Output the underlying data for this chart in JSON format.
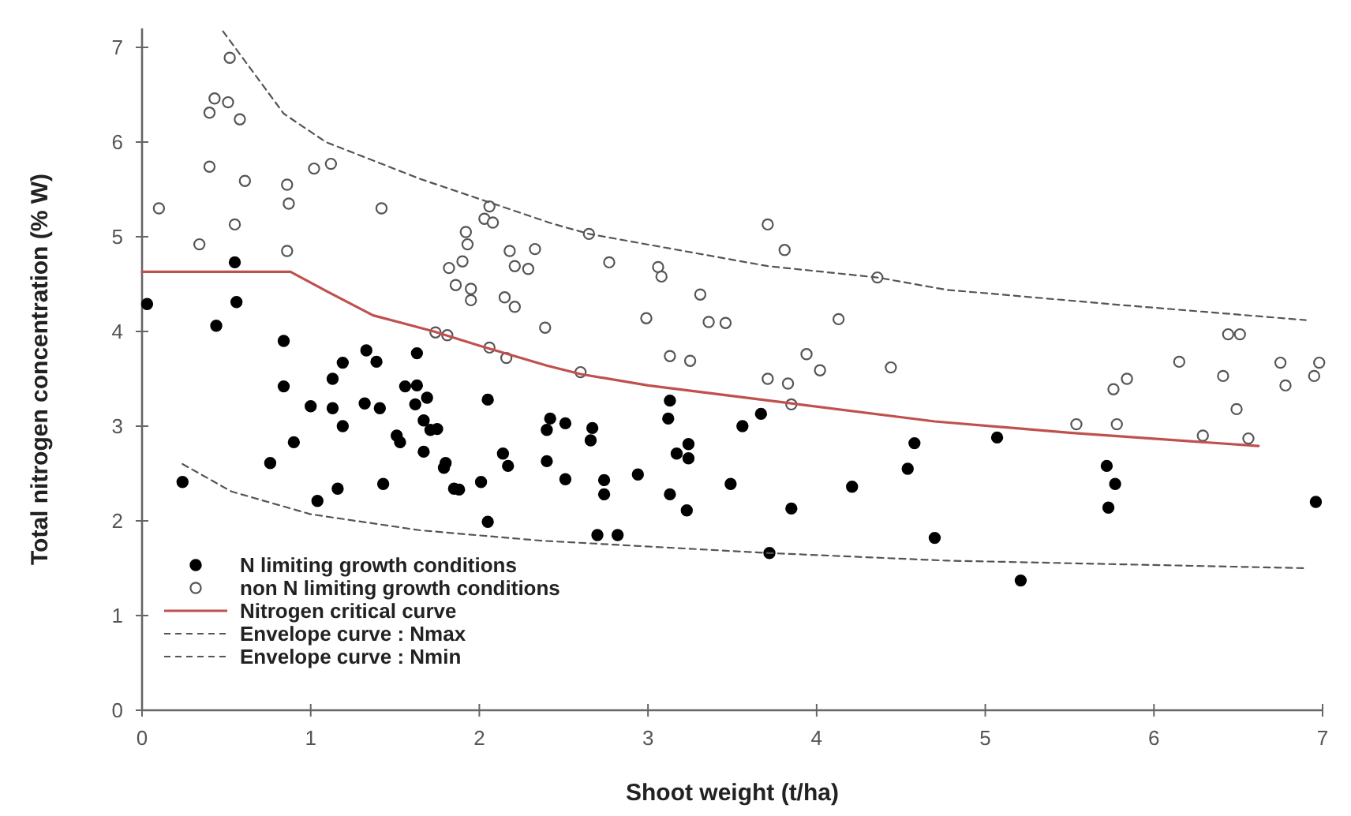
{
  "chart_data": {
    "type": "scatter",
    "xlabel": "Shoot weight (t/ha)",
    "ylabel": "Total nitrogen concentration (% W)",
    "xlim": [
      0,
      7
    ],
    "ylim": [
      0,
      7.2
    ],
    "xticks": [
      0,
      1,
      2,
      3,
      4,
      5,
      6,
      7
    ],
    "yticks": [
      0,
      1,
      2,
      3,
      4,
      5,
      6,
      7
    ],
    "grid": false,
    "legend": "bottom left",
    "series": [
      {
        "name": "N limiting growth conditions",
        "marker": "circle",
        "color": "#000000",
        "x": [
          0.03,
          0.24,
          0.44,
          0.55,
          0.56,
          0.76,
          0.84,
          0.84,
          0.9,
          1.0,
          1.04,
          1.13,
          1.13,
          1.16,
          1.19,
          1.19,
          1.32,
          1.33,
          1.39,
          1.41,
          1.43,
          1.51,
          1.53,
          1.56,
          1.62,
          1.63,
          1.63,
          1.67,
          1.67,
          1.69,
          1.71,
          1.75,
          1.79,
          1.8,
          1.85,
          1.88,
          2.01,
          2.05,
          2.05,
          2.14,
          2.17,
          2.4,
          2.4,
          2.42,
          2.51,
          2.51,
          2.66,
          2.67,
          2.7,
          2.74,
          2.74,
          2.82,
          2.94,
          3.12,
          3.13,
          3.13,
          3.17,
          3.23,
          3.24,
          3.24,
          3.49,
          3.56,
          3.67,
          3.72,
          3.85,
          4.21,
          4.54,
          4.58,
          4.7,
          5.07,
          5.21,
          5.72,
          5.73,
          5.77,
          6.96
        ],
        "values": [
          4.29,
          2.41,
          4.06,
          4.73,
          4.31,
          2.61,
          3.9,
          3.42,
          2.83,
          3.21,
          2.21,
          3.19,
          3.5,
          2.34,
          3.67,
          3.0,
          3.24,
          3.8,
          3.68,
          3.19,
          2.39,
          2.9,
          2.83,
          3.42,
          3.23,
          3.43,
          3.77,
          3.06,
          2.73,
          3.3,
          2.96,
          2.97,
          2.56,
          2.61,
          2.34,
          2.33,
          2.41,
          1.99,
          3.28,
          2.71,
          2.58,
          2.96,
          2.63,
          3.08,
          3.03,
          2.44,
          2.85,
          2.98,
          1.85,
          2.43,
          2.28,
          1.85,
          2.49,
          3.08,
          3.27,
          2.28,
          2.71,
          2.11,
          2.81,
          2.66,
          2.39,
          3.0,
          3.13,
          1.66,
          2.13,
          2.36,
          2.55,
          2.82,
          1.82,
          2.88,
          1.37,
          2.58,
          2.14,
          2.39,
          2.2
        ]
      },
      {
        "name": "non N limiting growth conditions",
        "marker": "circle",
        "color": "#ffffff",
        "x": [
          0.1,
          0.34,
          0.4,
          0.4,
          0.43,
          0.51,
          0.52,
          0.55,
          0.58,
          0.61,
          0.86,
          0.87,
          0.86,
          1.02,
          1.12,
          1.42,
          1.74,
          1.81,
          1.82,
          1.86,
          1.9,
          1.92,
          1.93,
          1.95,
          1.95,
          2.03,
          2.06,
          2.06,
          2.08,
          2.15,
          2.16,
          2.18,
          2.21,
          2.21,
          2.29,
          2.33,
          2.39,
          2.6,
          2.65,
          2.77,
          2.99,
          3.06,
          3.08,
          3.13,
          3.25,
          3.31,
          3.36,
          3.46,
          3.71,
          3.71,
          3.81,
          3.83,
          3.85,
          3.94,
          4.02,
          4.13,
          4.36,
          4.44,
          5.54,
          5.76,
          5.78,
          5.84,
          6.15,
          6.29,
          6.41,
          6.44,
          6.49,
          6.51,
          6.56,
          6.75,
          6.78,
          6.95,
          6.98
        ],
        "values": [
          5.3,
          4.92,
          6.31,
          5.74,
          6.46,
          6.42,
          6.89,
          5.13,
          6.24,
          5.59,
          5.55,
          5.35,
          4.85,
          5.72,
          5.77,
          5.3,
          3.99,
          3.96,
          4.67,
          4.49,
          4.74,
          5.05,
          4.92,
          4.45,
          4.33,
          5.19,
          5.32,
          3.83,
          5.15,
          4.36,
          3.72,
          4.85,
          4.69,
          4.26,
          4.66,
          4.87,
          4.04,
          3.57,
          5.03,
          4.73,
          4.14,
          4.68,
          4.58,
          3.74,
          3.69,
          4.39,
          4.1,
          4.09,
          5.13,
          3.5,
          4.86,
          3.45,
          3.23,
          3.76,
          3.59,
          4.13,
          4.57,
          3.62,
          3.02,
          3.39,
          3.02,
          3.5,
          3.68,
          2.9,
          3.53,
          3.97,
          3.18,
          3.97,
          2.87,
          3.67,
          3.43,
          3.53,
          3.67
        ]
      },
      {
        "name": "Nitrogen critical curve",
        "type": "line",
        "marker": "none",
        "line_style": "solid",
        "color": "#c0504d",
        "x": [
          0,
          0.88,
          1.1,
          1.37,
          1.73,
          2.0,
          2.4,
          2.6,
          3.0,
          3.85,
          4.7,
          5.5,
          6.62
        ],
        "values": [
          4.63,
          4.63,
          4.42,
          4.17,
          4.0,
          3.85,
          3.64,
          3.55,
          3.43,
          3.24,
          3.05,
          2.93,
          2.79
        ]
      },
      {
        "name": "Envelope curve : Nmax",
        "type": "line",
        "marker": "none",
        "line_style": "dashed",
        "color": "#555555",
        "x": [
          0.48,
          0.84,
          1.09,
          1.65,
          2.43,
          2.65,
          3.71,
          4.36,
          4.77,
          5.8,
          6.9
        ],
        "values": [
          7.17,
          6.3,
          6.0,
          5.61,
          5.14,
          5.03,
          4.69,
          4.57,
          4.44,
          4.28,
          4.12
        ]
      },
      {
        "name": "Envelope curve : Nmin",
        "type": "line",
        "marker": "none",
        "line_style": "dashed",
        "color": "#555555",
        "x": [
          0.24,
          0.53,
          1.0,
          1.65,
          2.37,
          3.72,
          4.77,
          6.9
        ],
        "values": [
          2.6,
          2.31,
          2.07,
          1.9,
          1.79,
          1.66,
          1.58,
          1.5
        ]
      }
    ]
  }
}
